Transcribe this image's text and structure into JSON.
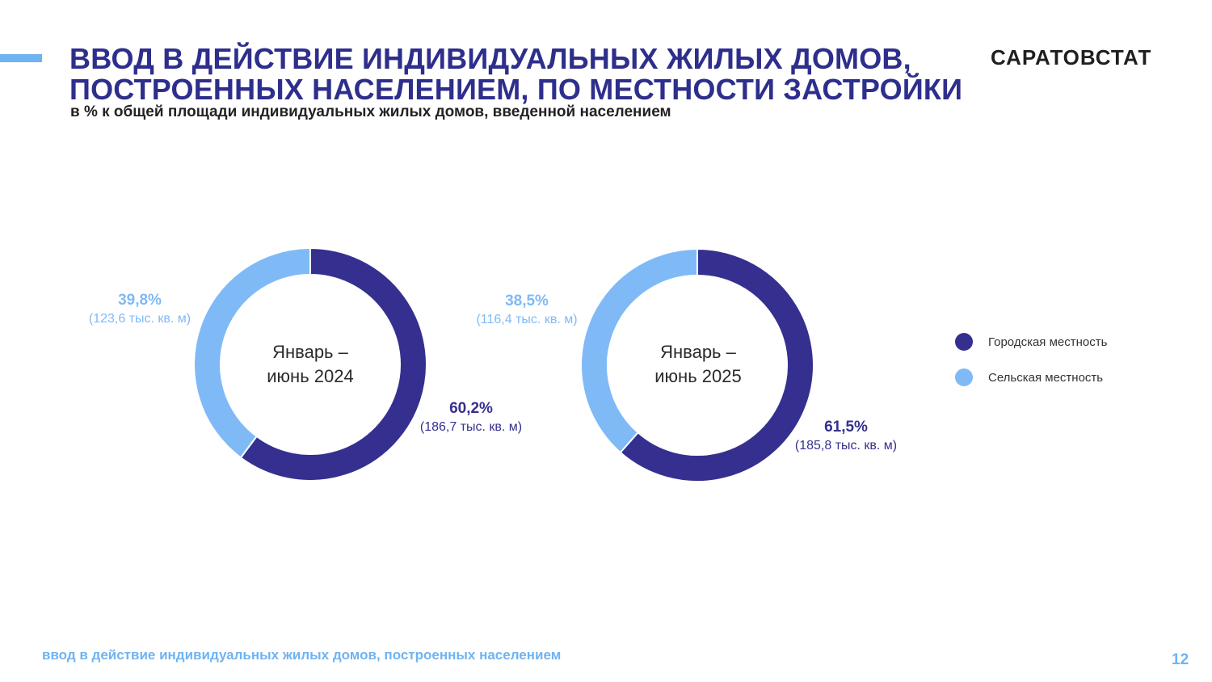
{
  "header": {
    "title_line1": "ВВОД В ДЕЙСТВИЕ ИНДИВИДУАЛЬНЫХ ЖИЛЫХ ДОМОВ,",
    "title_line2": "ПОСТРОЕННЫХ НАСЕЛЕНИЕМ, ПО МЕСТНОСТИ ЗАСТРОЙКИ",
    "subtitle": "в % к общей площади индивидуальных жилых домов, введенной населением",
    "brand": "САРАТОВСТАТ"
  },
  "colors": {
    "urban": "#35308f",
    "rural": "#7fbaf7",
    "accent": "#6fb3f2",
    "title": "#2e2e8c"
  },
  "legend": [
    {
      "label": "Городская местность",
      "color": "#35308f"
    },
    {
      "label": "Сельская местность",
      "color": "#7fbaf7"
    }
  ],
  "chart_data": [
    {
      "type": "pie",
      "center_label_line1": "Январь –",
      "center_label_line2": "июнь 2024",
      "slices": [
        {
          "category": "Городская местность",
          "value": 60.2,
          "label": "60,2%",
          "detail": "(186,7 тыс. кв. м)"
        },
        {
          "category": "Сельская местность",
          "value": 39.8,
          "label": "39,8%",
          "detail": "(123,6 тыс. кв. м)"
        }
      ]
    },
    {
      "type": "pie",
      "center_label_line1": "Январь –",
      "center_label_line2": "июнь 2025",
      "slices": [
        {
          "category": "Городская местность",
          "value": 61.5,
          "label": "61,5%",
          "detail": "(185,8 тыс. кв. м)"
        },
        {
          "category": "Сельская местность",
          "value": 38.5,
          "label": "38,5%",
          "detail": "(116,4 тыс. кв. м)"
        }
      ]
    }
  ],
  "footer": {
    "text": "ввод в действие индивидуальных жилых домов, построенных населением",
    "page_number": "12"
  }
}
